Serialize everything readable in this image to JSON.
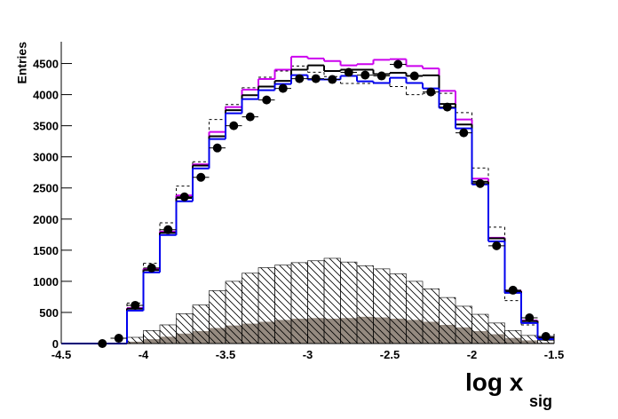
{
  "chart_data": {
    "type": "histogram",
    "x_label": "log x",
    "x_label_sub": "sig",
    "y_label": "Entries",
    "bins": [
      -4.5,
      -4.4,
      -4.3,
      -4.2,
      -4.1,
      -4.0,
      -3.9,
      -3.8,
      -3.7,
      -3.6,
      -3.5,
      -3.4,
      -3.3,
      -3.2,
      -3.1,
      -3.0,
      -2.9,
      -2.8,
      -2.7,
      -2.6,
      -2.5,
      -2.4,
      -2.3,
      -2.2,
      -2.1,
      -2.0,
      -1.9,
      -1.8,
      -1.7,
      -1.6,
      -1.5
    ],
    "series": [
      {
        "style": "filled",
        "color": "#958a80",
        "values": [
          0,
          0,
          0,
          0,
          30,
          70,
          110,
          160,
          200,
          250,
          290,
          320,
          350,
          380,
          400,
          410,
          400,
          410,
          430,
          420,
          400,
          380,
          350,
          300,
          260,
          200,
          150,
          90,
          50,
          15
        ]
      },
      {
        "style": "hatched",
        "color": "#000000",
        "values": [
          0,
          0,
          0,
          0,
          100,
          210,
          300,
          480,
          620,
          850,
          1000,
          1130,
          1220,
          1260,
          1300,
          1330,
          1370,
          1310,
          1250,
          1200,
          1120,
          1000,
          880,
          740,
          600,
          470,
          330,
          210,
          130,
          50
        ]
      },
      {
        "style": "dashed",
        "color": "#000000",
        "values": [
          0,
          0,
          0,
          0,
          650,
          1290,
          1940,
          2530,
          2920,
          3600,
          3840,
          4110,
          4280,
          4380,
          4460,
          4360,
          4290,
          4180,
          4180,
          4180,
          4130,
          4000,
          4020,
          4020,
          3710,
          2820,
          1870,
          690,
          300,
          70
        ]
      },
      {
        "style": "step",
        "color": "#cc00ee",
        "values": [
          0,
          0,
          0,
          0,
          570,
          1200,
          1800,
          2380,
          2880,
          3400,
          3800,
          4080,
          4250,
          4400,
          4610,
          4580,
          4540,
          4470,
          4490,
          4560,
          4570,
          4460,
          4420,
          4060,
          3600,
          2650,
          1700,
          850,
          370,
          90
        ]
      },
      {
        "style": "step",
        "color": "#000000",
        "values": [
          0,
          0,
          0,
          0,
          560,
          1180,
          1780,
          2340,
          2860,
          3330,
          3750,
          3990,
          4130,
          4220,
          4400,
          4470,
          4380,
          4400,
          4400,
          4330,
          4350,
          4300,
          4310,
          3850,
          3520,
          2600,
          1690,
          840,
          360,
          90
        ]
      },
      {
        "style": "step",
        "color": "#0000ee",
        "values": [
          0,
          0,
          0,
          0,
          530,
          1143,
          1743,
          2286,
          2814,
          3286,
          3700,
          3929,
          4071,
          4171,
          4314,
          4243,
          4243,
          4300,
          4214,
          4186,
          4271,
          4186,
          4100,
          3786,
          3457,
          2557,
          1643,
          814,
          329,
          71
        ]
      },
      {
        "style": "points",
        "color": "#000000",
        "values": [
          null,
          null,
          0,
          85,
          614,
          1214,
          1829,
          2357,
          2671,
          3143,
          3500,
          3643,
          3914,
          4100,
          4257,
          4257,
          4243,
          4357,
          4314,
          4300,
          4486,
          4300,
          4043,
          3800,
          3386,
          2571,
          1571,
          857,
          414,
          114
        ]
      }
    ],
    "xlim": [
      -4.5,
      -1.5
    ],
    "xticks": [
      -4.5,
      -4,
      -3.5,
      -3,
      -2.5,
      -2,
      -1.5
    ],
    "ylim": [
      0,
      4850
    ],
    "yticks": [
      0,
      500,
      1000,
      1500,
      2000,
      2500,
      3000,
      3500,
      4000,
      4500
    ]
  }
}
